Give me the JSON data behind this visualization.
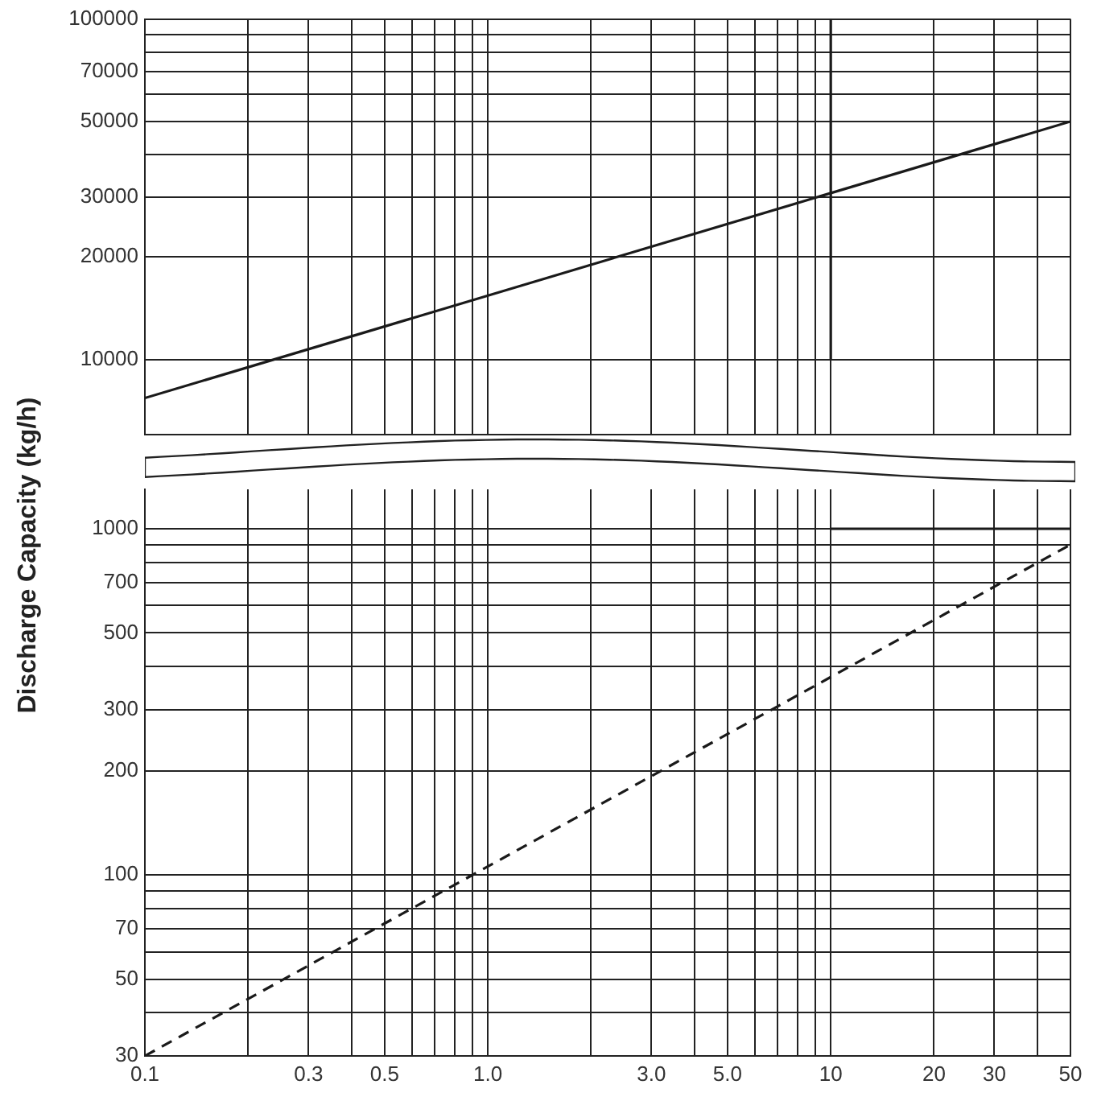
{
  "chart_data": [
    {
      "type": "line",
      "log": "xy",
      "grid": true,
      "marker": "none",
      "tick_labels": "y",
      "xlim": [
        0.1,
        50
      ],
      "xticks": [
        0.1,
        0.2,
        0.3,
        0.4,
        0.5,
        0.6,
        0.7,
        0.8,
        0.9,
        1,
        2,
        3,
        4,
        5,
        6,
        7,
        8,
        9,
        10,
        20,
        30,
        40,
        50
      ],
      "ylim": [
        6000,
        100000
      ],
      "yticks": [
        10000,
        20000,
        30000,
        {
          "value": 40000,
          "label": null
        },
        50000,
        {
          "value": 60000,
          "label": null
        },
        70000,
        {
          "value": 80000,
          "label": null
        },
        {
          "value": 90000,
          "label": null
        },
        100000
      ],
      "series": [
        {
          "type": "line",
          "color": "#1a1a1a",
          "line_style": "solid",
          "x": [
            0.1,
            50
          ],
          "values": [
            7700,
            50000
          ]
        },
        {
          "type": "line",
          "color": "#1a1a1a",
          "line_style": "solid",
          "x": [
            10,
            10
          ],
          "values": [
            10000,
            100000
          ]
        }
      ]
    },
    {
      "type": "line",
      "log": "xy",
      "grid": true,
      "marker": "none",
      "ylabel": "Discharge Capacity (kg/h)",
      "xlim": [
        0.1,
        50
      ],
      "xticks": [
        0.1,
        {
          "value": 0.2,
          "label": null
        },
        0.3,
        {
          "value": 0.4,
          "label": null
        },
        0.5,
        {
          "value": 0.6,
          "label": null
        },
        {
          "value": 0.7,
          "label": null
        },
        {
          "value": 0.8,
          "label": null
        },
        {
          "value": 0.9,
          "label": null
        },
        {
          "value": 1,
          "label": "1.0"
        },
        {
          "value": 2,
          "label": null
        },
        {
          "value": 3,
          "label": "3.0"
        },
        {
          "value": 4,
          "label": null
        },
        {
          "value": 5,
          "label": "5.0"
        },
        {
          "value": 6,
          "label": null
        },
        {
          "value": 7,
          "label": null
        },
        {
          "value": 8,
          "label": null
        },
        {
          "value": 9,
          "label": null
        },
        10,
        20,
        30,
        {
          "value": 40,
          "label": null
        },
        50
      ],
      "ylim": [
        30,
        1300
      ],
      "yticks": [
        30,
        {
          "value": 40,
          "label": null
        },
        50,
        {
          "value": 60,
          "label": null
        },
        70,
        {
          "value": 80,
          "label": null
        },
        {
          "value": 90,
          "label": null
        },
        100,
        200,
        300,
        {
          "value": 400,
          "label": null
        },
        500,
        {
          "value": 600,
          "label": null
        },
        700,
        {
          "value": 800,
          "label": null
        },
        {
          "value": 900,
          "label": null
        },
        1000
      ],
      "series": [
        {
          "type": "line",
          "color": "#1a1a1a",
          "line_style": "dashed",
          "x": [
            0.1,
            50
          ],
          "values": [
            30,
            900
          ]
        },
        {
          "type": "line",
          "color": "#1a1a1a",
          "line_style": "solid",
          "x": [
            10,
            50
          ],
          "values": [
            1000,
            1000
          ]
        }
      ]
    }
  ]
}
